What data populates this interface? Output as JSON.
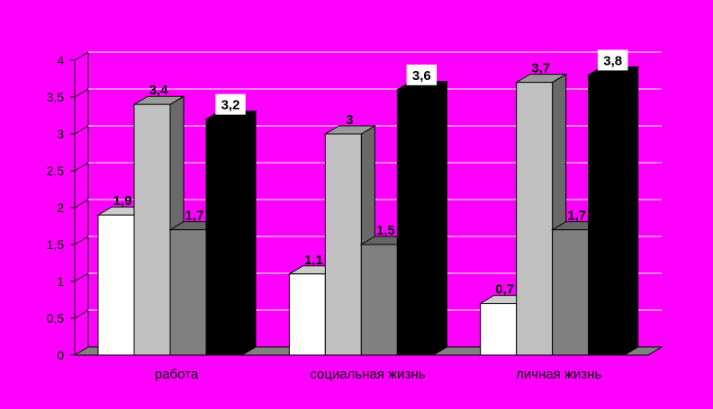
{
  "chart_data": {
    "type": "bar",
    "title": "",
    "xlabel": "",
    "ylabel": "",
    "categories": [
      "работа",
      "социальная жизнь",
      "личная жизнь"
    ],
    "series": [
      {
        "values": [
          1.9,
          1.1,
          0.7
        ],
        "labels": [
          "1,9",
          "1,1",
          "0,7"
        ],
        "color": "#ffffff"
      },
      {
        "values": [
          3.4,
          3.0,
          3.7
        ],
        "labels": [
          "3,4",
          "3",
          "3,7"
        ],
        "color": "#c0c0c0"
      },
      {
        "values": [
          1.7,
          1.5,
          1.7
        ],
        "labels": [
          "1,7",
          "1,5",
          "1,7"
        ],
        "color": "#808080"
      },
      {
        "values": [
          3.2,
          3.6,
          3.8
        ],
        "labels": [
          "3,2",
          "3,6",
          "3,8"
        ],
        "color": "#000000",
        "boxed_labels": true
      }
    ],
    "ylim": [
      0,
      4
    ],
    "yticks": [
      "0",
      "0,5",
      "1",
      "1,5",
      "2",
      "2,5",
      "3",
      "3,5",
      "4"
    ],
    "grid": true,
    "legend": "none",
    "background": "#ff00ff"
  }
}
